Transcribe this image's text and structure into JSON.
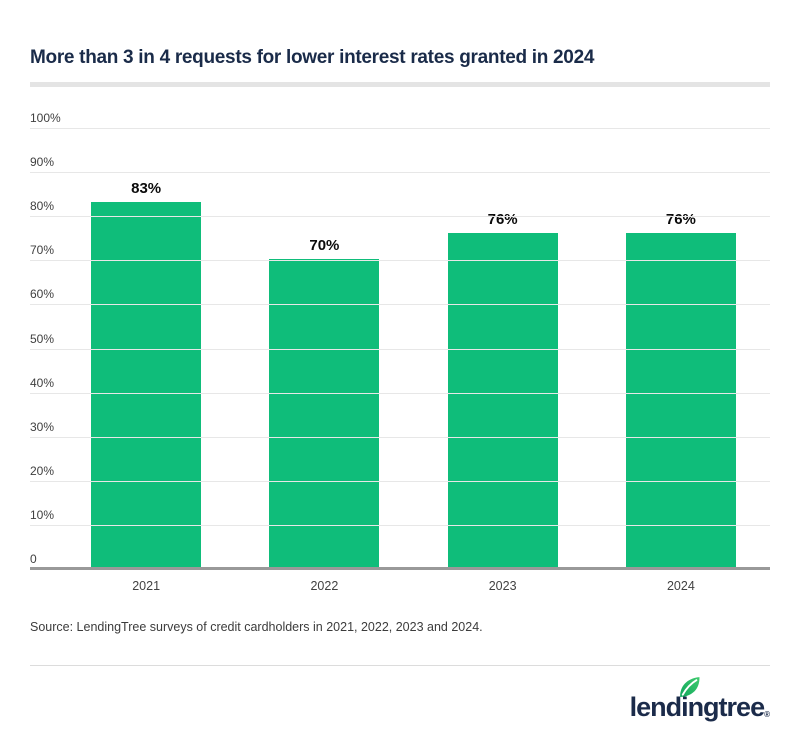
{
  "header": {
    "title": "More than 3 in 4 requests for lower interest rates granted in 2024"
  },
  "chart_data": {
    "type": "bar",
    "title": "More than 3 in 4 requests for lower interest rates granted in 2024",
    "categories": [
      "2021",
      "2022",
      "2023",
      "2024"
    ],
    "values": [
      83,
      70,
      76,
      76
    ],
    "value_labels": [
      "83%",
      "70%",
      "76%",
      "76%"
    ],
    "xlabel": "",
    "ylabel": "",
    "ylim": [
      0,
      100
    ],
    "y_ticks": [
      "100%",
      "90%",
      "80%",
      "70%",
      "60%",
      "50%",
      "40%",
      "30%",
      "20%",
      "10%",
      "0"
    ],
    "y_tick_values": [
      100,
      90,
      80,
      70,
      60,
      50,
      40,
      30,
      20,
      10,
      0
    ],
    "grid": true,
    "legend": "none",
    "bar_color": "#0fbd7a"
  },
  "footer": {
    "source": "Source: LendingTree surveys of credit cardholders in 2021, 2022, 2023 and 2024.",
    "logo_text": "lendingtree",
    "logo_registered": "®",
    "logo_leaf": "leaf-icon"
  },
  "colors": {
    "bar_green": "#0fbd7a",
    "title_navy": "#1a2b49",
    "logo_navy": "#1b2b4a",
    "gridline": "#e7e7e7",
    "axis_line": "#999999",
    "leaf_green_light": "#3fcb6e",
    "leaf_green_dark": "#0fa65c"
  }
}
